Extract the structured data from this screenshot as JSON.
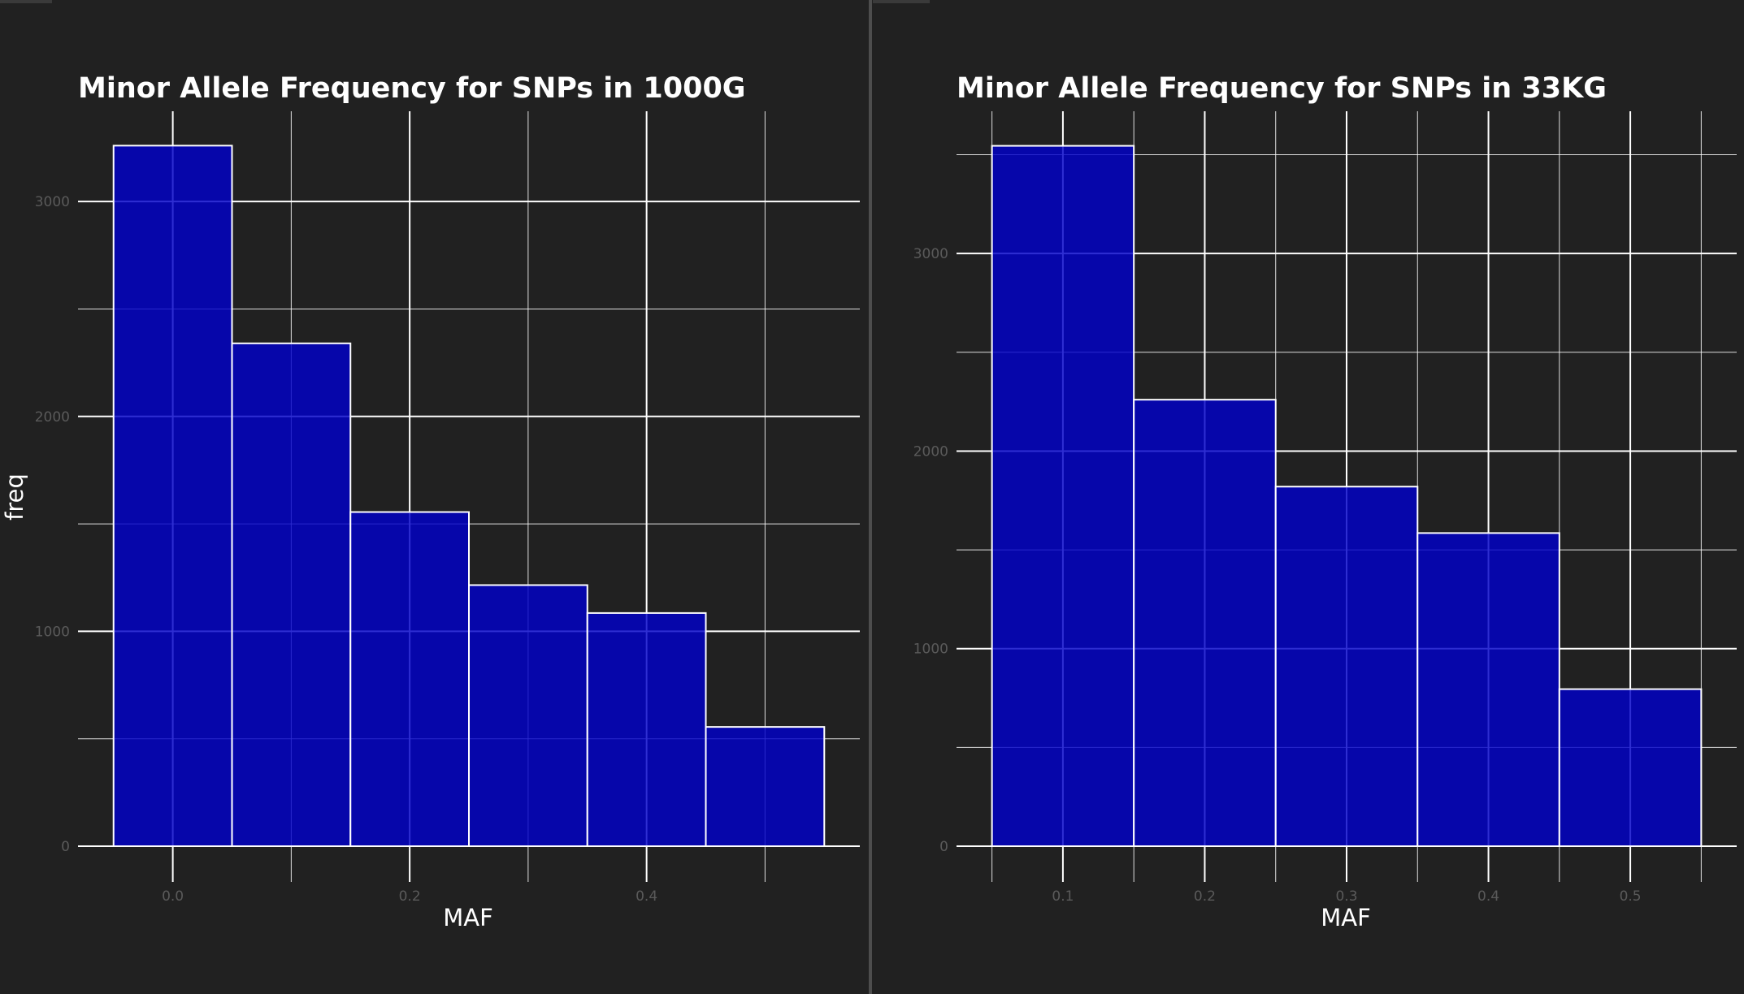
{
  "colors": {
    "background": "#212121",
    "bar_fill": "#0000c8",
    "bar_stroke": "#ffffff",
    "grid": "#ffffff",
    "text": "#ffffff",
    "tick_text": "#5a5a5a"
  },
  "chart_data": [
    {
      "type": "bar",
      "title": "Minor Allele Frequency for SNPs in 1000G",
      "xlabel": "MAF",
      "ylabel": "freq",
      "bin_edges": [
        -0.05,
        0.05,
        0.15,
        0.25,
        0.35,
        0.45,
        0.55
      ],
      "values": [
        3260,
        2340,
        1555,
        1215,
        1085,
        555
      ],
      "xlim": [
        -0.08,
        0.58
      ],
      "ylim": [
        0,
        3420
      ],
      "x_major_ticks": [
        0.0,
        0.2,
        0.4
      ],
      "x_tick_labels": [
        "0.0",
        "0.2",
        "0.4"
      ],
      "x_minor_ticks": [
        0.1,
        0.3,
        0.5
      ],
      "y_major_ticks": [
        0,
        1000,
        2000,
        3000
      ],
      "y_tick_labels": [
        "0",
        "1000",
        "2000",
        "3000"
      ],
      "y_minor_ticks": [
        500,
        1500,
        2500
      ],
      "grid": true
    },
    {
      "type": "bar",
      "title": "Minor Allele Frequency for SNPs in 33KG",
      "xlabel": "MAF",
      "ylabel": "freq",
      "bin_edges": [
        0.05,
        0.15,
        0.25,
        0.35,
        0.45,
        0.55
      ],
      "values": [
        3545,
        2260,
        1820,
        1585,
        795
      ],
      "xlim": [
        0.025,
        0.575
      ],
      "ylim": [
        0,
        3720
      ],
      "x_major_ticks": [
        0.1,
        0.2,
        0.3,
        0.4,
        0.5
      ],
      "x_tick_labels": [
        "0.1",
        "0.2",
        "0.3",
        "0.4",
        "0.5"
      ],
      "x_minor_ticks": [
        0.05,
        0.15,
        0.25,
        0.35,
        0.45,
        0.55
      ],
      "y_major_ticks": [
        0,
        1000,
        2000,
        3000
      ],
      "y_tick_labels": [
        "0",
        "1000",
        "2000",
        "3000"
      ],
      "y_minor_ticks": [
        500,
        1500,
        2500,
        3500
      ],
      "grid": true
    }
  ]
}
